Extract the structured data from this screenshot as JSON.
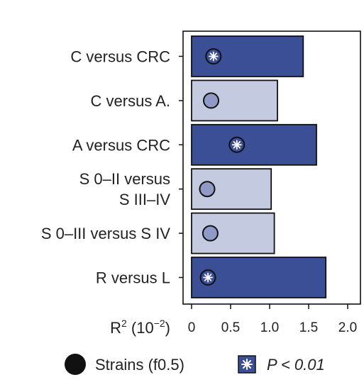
{
  "chart_data": {
    "type": "bar",
    "orientation": "horizontal",
    "categories": [
      [
        "C versus CRC"
      ],
      [
        "C versus A."
      ],
      [
        "A versus CRC"
      ],
      [
        "S 0–II versus",
        "S III–IV"
      ],
      [
        "S 0–III versus S IV"
      ],
      [
        "R versus  L"
      ]
    ],
    "values": [
      1.43,
      1.1,
      1.6,
      1.02,
      1.06,
      1.72
    ],
    "strains_f05": [
      0.28,
      0.25,
      0.58,
      0.2,
      0.24,
      0.21
    ],
    "significant": [
      true,
      false,
      true,
      false,
      false,
      true
    ],
    "xlabel": {
      "base": "R",
      "sup1": "2",
      "mid": " (10",
      "sup2": "−2",
      "end": ")"
    },
    "xticks": [
      "0",
      "0.5",
      "1.0",
      "1.5",
      "2.0"
    ],
    "xtick_values": [
      0,
      0.5,
      1.0,
      1.5,
      2.0
    ],
    "xlim": [
      0,
      2.1
    ],
    "grid": false,
    "legend": {
      "placement": "bottom",
      "strains_label": "Strains (f0.5)",
      "p_label": "P < 0.01"
    },
    "colors": {
      "significant_bar": "#3b4f96",
      "nonsignificant_bar": "#c4cadf",
      "strain_marker_dark": "#3b4f96",
      "strain_marker_light": "#8f9bc6",
      "outline": "#111111"
    }
  }
}
